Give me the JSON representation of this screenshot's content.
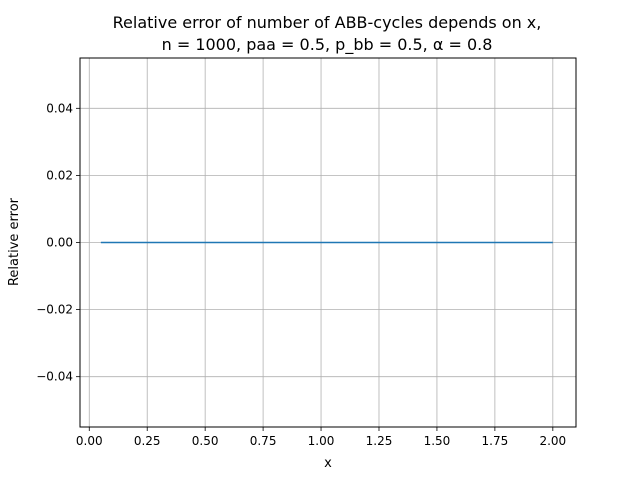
{
  "chart_data": {
    "type": "line",
    "title": "Relative error of number of ABB-cycles depends on x,",
    "subtitle": "n = 1000, paa = 0.5, p_bb = 0.5, α = 0.8",
    "xlabel": "x",
    "ylabel": "Relative error",
    "xlim": [
      -0.04,
      2.1
    ],
    "ylim": [
      -0.055,
      0.055
    ],
    "grid": true,
    "x_ticks": [
      0.0,
      0.25,
      0.5,
      0.75,
      1.0,
      1.25,
      1.5,
      1.75,
      2.0
    ],
    "x_tick_labels": [
      "0.00",
      "0.25",
      "0.50",
      "0.75",
      "1.00",
      "1.25",
      "1.50",
      "1.75",
      "2.00"
    ],
    "y_ticks": [
      -0.04,
      -0.02,
      0.0,
      0.02,
      0.04
    ],
    "y_tick_labels": [
      "−0.04",
      "−0.02",
      "0.00",
      "0.02",
      "0.04"
    ],
    "series": [
      {
        "color": "#1f77b4",
        "x": [
          0.05,
          0.25,
          0.5,
          0.75,
          1.0,
          1.25,
          1.5,
          1.75,
          2.0
        ],
        "y": [
          0.0,
          0.0,
          0.0,
          0.0,
          0.0,
          0.0,
          0.0,
          0.0,
          0.0
        ]
      }
    ]
  }
}
